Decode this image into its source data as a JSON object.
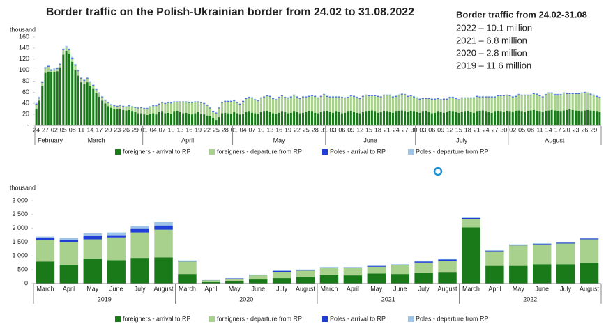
{
  "summary": {
    "title": "Border traffic from 24.02-31.08",
    "lines": [
      "2022 – 10.1 million",
      "2021 – 6.8 million",
      "2020 – 2.8 million",
      "2019 – 11.6 million"
    ]
  },
  "chart_data": [
    {
      "type": "bar",
      "stacked": true,
      "title": "Border traffic on the Polish-Ukrainian border from 24.02 to 31.08.2022",
      "ylabel": "thousand",
      "ylim": [
        0,
        160
      ],
      "yticks": [
        {
          "value": 0,
          "label": "-"
        },
        20,
        40,
        60,
        80,
        100,
        120,
        140,
        160
      ],
      "grid": false,
      "categories": [
        "24",
        null,
        null,
        "27",
        null,
        null,
        "02",
        null,
        null,
        "05",
        null,
        null,
        "08",
        null,
        null,
        "11",
        null,
        null,
        "14",
        null,
        null,
        "17",
        null,
        null,
        "20",
        null,
        null,
        "23",
        null,
        null,
        "26",
        null,
        null,
        "29",
        null,
        null,
        "01",
        null,
        null,
        "04",
        null,
        null,
        "07",
        null,
        null,
        "10",
        null,
        null,
        "13",
        null,
        null,
        "16",
        null,
        null,
        "19",
        null,
        null,
        "22",
        null,
        null,
        "25",
        null,
        null,
        "28",
        null,
        null,
        "01",
        null,
        null,
        "04",
        null,
        null,
        "07",
        null,
        null,
        "10",
        null,
        null,
        "13",
        null,
        null,
        "16",
        null,
        null,
        "19",
        null,
        null,
        "22",
        null,
        null,
        "25",
        null,
        null,
        "28",
        null,
        null,
        "31",
        null,
        null,
        "03",
        null,
        null,
        "06",
        null,
        null,
        "09",
        null,
        null,
        "12",
        null,
        null,
        "15",
        null,
        null,
        "18",
        null,
        null,
        "21",
        null,
        null,
        "24",
        null,
        null,
        "27",
        null,
        null,
        "30",
        null,
        null,
        "03",
        null,
        null,
        "06",
        null,
        null,
        "09",
        null,
        null,
        "12",
        null,
        null,
        "15",
        null,
        null,
        "18",
        null,
        null,
        "21",
        null,
        null,
        "24",
        null,
        null,
        "27",
        null,
        null,
        "30",
        null,
        null,
        "02",
        null,
        null,
        "05",
        null,
        null,
        "08",
        null,
        null,
        "11",
        null,
        null,
        "14",
        null,
        null,
        "17",
        null,
        null,
        "20",
        null,
        null,
        "23",
        null,
        null,
        "26",
        null,
        null,
        "29",
        null,
        null
      ],
      "groups": [
        {
          "label": "February",
          "span": 5
        },
        {
          "label": "March",
          "span": 31
        },
        {
          "label": "April",
          "span": 30
        },
        {
          "label": "May",
          "span": 31
        },
        {
          "label": "June",
          "span": 30
        },
        {
          "label": "July",
          "span": 31
        },
        {
          "label": "August",
          "span": 31
        }
      ],
      "series": [
        {
          "name": "foreigners - arrival to RP",
          "color": "#1a7a1a",
          "values": [
            30,
            45,
            72,
            95,
            97,
            96,
            96,
            98,
            105,
            128,
            135,
            130,
            115,
            100,
            90,
            78,
            75,
            78,
            72,
            66,
            58,
            52,
            45,
            40,
            35,
            32,
            30,
            29,
            30,
            28,
            27,
            28,
            25,
            24,
            22,
            22,
            20,
            19,
            21,
            22,
            20,
            24,
            25,
            22,
            23,
            21,
            25,
            26,
            24,
            22,
            23,
            21,
            20,
            22,
            24,
            21,
            20,
            18,
            17,
            14,
            10,
            15,
            22,
            23,
            22,
            21,
            24,
            22,
            20,
            21,
            24,
            25,
            23,
            22,
            21,
            24,
            25,
            26,
            24,
            22,
            21,
            23,
            25,
            24,
            22,
            23,
            25,
            24,
            22,
            23,
            24,
            26,
            25,
            23,
            22,
            24,
            25,
            26,
            24,
            23,
            25,
            24,
            22,
            23,
            25,
            26,
            24,
            23,
            22,
            24,
            25,
            26,
            27,
            25,
            23,
            24,
            26,
            25,
            24,
            23,
            25,
            26,
            27,
            25,
            24,
            26,
            25,
            24,
            23,
            25,
            26,
            24,
            22,
            23,
            25,
            24,
            23,
            24,
            26,
            25,
            24,
            23,
            24,
            25,
            26,
            24,
            23,
            25,
            26,
            27,
            25,
            24,
            23,
            25,
            26,
            25,
            24,
            26,
            25,
            24,
            26,
            27,
            25,
            24,
            26,
            27,
            28,
            26,
            25,
            24,
            26,
            27,
            28,
            27,
            26,
            25,
            27,
            28,
            29,
            28,
            27,
            26,
            25,
            27,
            28,
            27,
            26,
            25,
            24
          ]
        },
        {
          "name": "foreigners - departure from RP",
          "color": "#a9d18e",
          "values": [
            8,
            4,
            5,
            8,
            9,
            3,
            4,
            4,
            5,
            8,
            6,
            6,
            6,
            8,
            8,
            7,
            6,
            7,
            6,
            6,
            6,
            6,
            6,
            5,
            6,
            5,
            5,
            5,
            6,
            6,
            6,
            7,
            8,
            8,
            9,
            10,
            10,
            11,
            12,
            13,
            15,
            14,
            16,
            17,
            18,
            19,
            17,
            16,
            18,
            20,
            19,
            20,
            21,
            20,
            18,
            20,
            19,
            18,
            14,
            10,
            12,
            16,
            19,
            20,
            21,
            22,
            20,
            19,
            18,
            22,
            24,
            25,
            26,
            24,
            23,
            25,
            26,
            27,
            28,
            26,
            25,
            27,
            28,
            26,
            27,
            28,
            29,
            27,
            26,
            28,
            27,
            26,
            28,
            29,
            27,
            28,
            30,
            26,
            27,
            28,
            26,
            27,
            28,
            26,
            25,
            27,
            28,
            27,
            26,
            28,
            29,
            27,
            26,
            28,
            29,
            27,
            28,
            29,
            30,
            28,
            27,
            28,
            29,
            30,
            28,
            27,
            26,
            25,
            24,
            23,
            22,
            24,
            25,
            24,
            23,
            22,
            24,
            23,
            24,
            25,
            24,
            23,
            25,
            24,
            23,
            25,
            26,
            27,
            25,
            24,
            26,
            27,
            28,
            26,
            27,
            28,
            29,
            28,
            28,
            27,
            26,
            28,
            29,
            30,
            28,
            27,
            29,
            30,
            28,
            27,
            29,
            31,
            30,
            28,
            29,
            30,
            31,
            29,
            28,
            29,
            30,
            31,
            33,
            32,
            30,
            29,
            28,
            27,
            26
          ]
        },
        {
          "name": "Poles - arrival to RP",
          "color": "#1f3fd6",
          "values": [
            1,
            1,
            1,
            1,
            1,
            1,
            1,
            1,
            1,
            1,
            1,
            1,
            1,
            1,
            1,
            1,
            1,
            1,
            1,
            1,
            1,
            1,
            1,
            1,
            1,
            1,
            1,
            1,
            1,
            1,
            1,
            1,
            1,
            1,
            1,
            1,
            1,
            1,
            1,
            1,
            1,
            1,
            1,
            1,
            1,
            1,
            1,
            1,
            1,
            1,
            1,
            1,
            1,
            1,
            1,
            1,
            1,
            1,
            1,
            1,
            1,
            1,
            1,
            1,
            1,
            1,
            1,
            1,
            1,
            1,
            1,
            1,
            1,
            1,
            1,
            1,
            1,
            1,
            1,
            1,
            1,
            1,
            1,
            1,
            1,
            1,
            1,
            1,
            1,
            1,
            1,
            1,
            1,
            1,
            1,
            1,
            1,
            1,
            1,
            1,
            1,
            1,
            1,
            1,
            1,
            1,
            1,
            1,
            1,
            1,
            1,
            1,
            1,
            1,
            1,
            1,
            1,
            1,
            1,
            1,
            1,
            1,
            1,
            1,
            1,
            1,
            1,
            1,
            1,
            1,
            1,
            1,
            1,
            1,
            1,
            1,
            1,
            1,
            1,
            1,
            1,
            1,
            1,
            1,
            1,
            1,
            1,
            1,
            1,
            1,
            1,
            1,
            1,
            1,
            1,
            1,
            1,
            1,
            1,
            1,
            1,
            1,
            1,
            1,
            1,
            1,
            1,
            1,
            1,
            1,
            1,
            1,
            1,
            1,
            1,
            1,
            1,
            1,
            1,
            1,
            1,
            1,
            1,
            1,
            1,
            1,
            1,
            1,
            1
          ]
        },
        {
          "name": "Poles - departure from RP",
          "color": "#9dc3e6",
          "values": [
            2,
            2,
            2,
            2,
            2,
            2,
            2,
            2,
            2,
            2,
            2,
            2,
            2,
            2,
            2,
            1,
            1,
            1,
            1,
            1,
            1,
            1,
            1,
            1,
            1,
            1,
            1,
            1,
            1,
            1,
            1,
            1,
            1,
            1,
            1,
            1,
            1,
            1,
            1,
            1,
            1,
            1,
            1,
            1,
            1,
            1,
            1,
            1,
            1,
            1,
            1,
            1,
            1,
            1,
            1,
            1,
            1,
            1,
            1,
            1,
            1,
            1,
            1,
            1,
            1,
            1,
            1,
            1,
            1,
            1,
            1,
            1,
            1,
            1,
            1,
            1,
            1,
            1,
            1,
            1,
            1,
            1,
            1,
            1,
            1,
            1,
            1,
            1,
            1,
            1,
            1,
            1,
            1,
            1,
            1,
            1,
            1,
            1,
            1,
            1,
            1,
            1,
            1,
            1,
            1,
            1,
            1,
            1,
            1,
            1,
            1,
            1,
            1,
            1,
            1,
            1,
            1,
            1,
            1,
            1,
            1,
            1,
            1,
            1,
            1,
            1,
            1,
            1,
            1,
            1,
            1,
            1,
            1,
            1,
            1,
            1,
            1,
            1,
            1,
            1,
            1,
            1,
            1,
            1,
            1,
            1,
            1,
            1,
            1,
            1,
            1,
            1,
            1,
            1,
            1,
            1,
            1,
            1,
            1,
            1,
            1,
            1,
            1,
            1,
            1,
            1,
            1,
            1,
            1,
            1,
            1,
            1,
            1,
            1,
            1,
            1,
            1,
            1,
            1,
            1,
            1,
            1,
            1,
            1,
            1,
            1,
            1,
            1,
            1
          ]
        }
      ]
    },
    {
      "type": "bar",
      "stacked": true,
      "ylabel": "thousand",
      "ylim": [
        0,
        3000
      ],
      "yticks": [
        0,
        500,
        {
          "value": 1000,
          "label": "1 000"
        },
        {
          "value": 1500,
          "label": "1 500"
        },
        {
          "value": 2000,
          "label": "2 000"
        },
        {
          "value": 2500,
          "label": "2 500"
        },
        {
          "value": 3000,
          "label": "3 000"
        }
      ],
      "grid": false,
      "categories": [
        "March",
        "April",
        "May",
        "June",
        "July",
        "August",
        "March",
        "April",
        "May",
        "June",
        "July",
        "August",
        "March",
        "April",
        "May",
        "June",
        "July",
        "August",
        "March",
        "April",
        "May",
        "June",
        "July",
        "August"
      ],
      "groups": [
        {
          "label": "2019",
          "span": 6
        },
        {
          "label": "2020",
          "span": 6
        },
        {
          "label": "2021",
          "span": 6
        },
        {
          "label": "2022",
          "span": 6
        }
      ],
      "series": [
        {
          "name": "foreigners - arrival to RP",
          "color": "#1a7a1a",
          "values": [
            800,
            680,
            900,
            850,
            930,
            950,
            350,
            50,
            80,
            150,
            200,
            250,
            330,
            300,
            370,
            350,
            380,
            400,
            2030,
            640,
            640,
            700,
            700,
            750
          ]
        },
        {
          "name": "foreigners - departure from RP",
          "color": "#a9d18e",
          "values": [
            780,
            820,
            700,
            820,
            920,
            1000,
            450,
            70,
            100,
            150,
            220,
            220,
            230,
            260,
            240,
            310,
            380,
            420,
            310,
            530,
            740,
            720,
            750,
            850
          ]
        },
        {
          "name": "Poles - arrival to RP",
          "color": "#1f3fd6",
          "values": [
            60,
            80,
            120,
            80,
            150,
            150,
            20,
            5,
            10,
            15,
            40,
            20,
            20,
            25,
            25,
            20,
            40,
            50,
            30,
            20,
            20,
            20,
            30,
            30
          ]
        },
        {
          "name": "Poles - departure from RP",
          "color": "#9dc3e6",
          "values": [
            60,
            70,
            100,
            100,
            80,
            120,
            20,
            5,
            10,
            15,
            30,
            20,
            20,
            15,
            20,
            20,
            30,
            40,
            20,
            20,
            20,
            20,
            20,
            20
          ]
        }
      ]
    }
  ]
}
